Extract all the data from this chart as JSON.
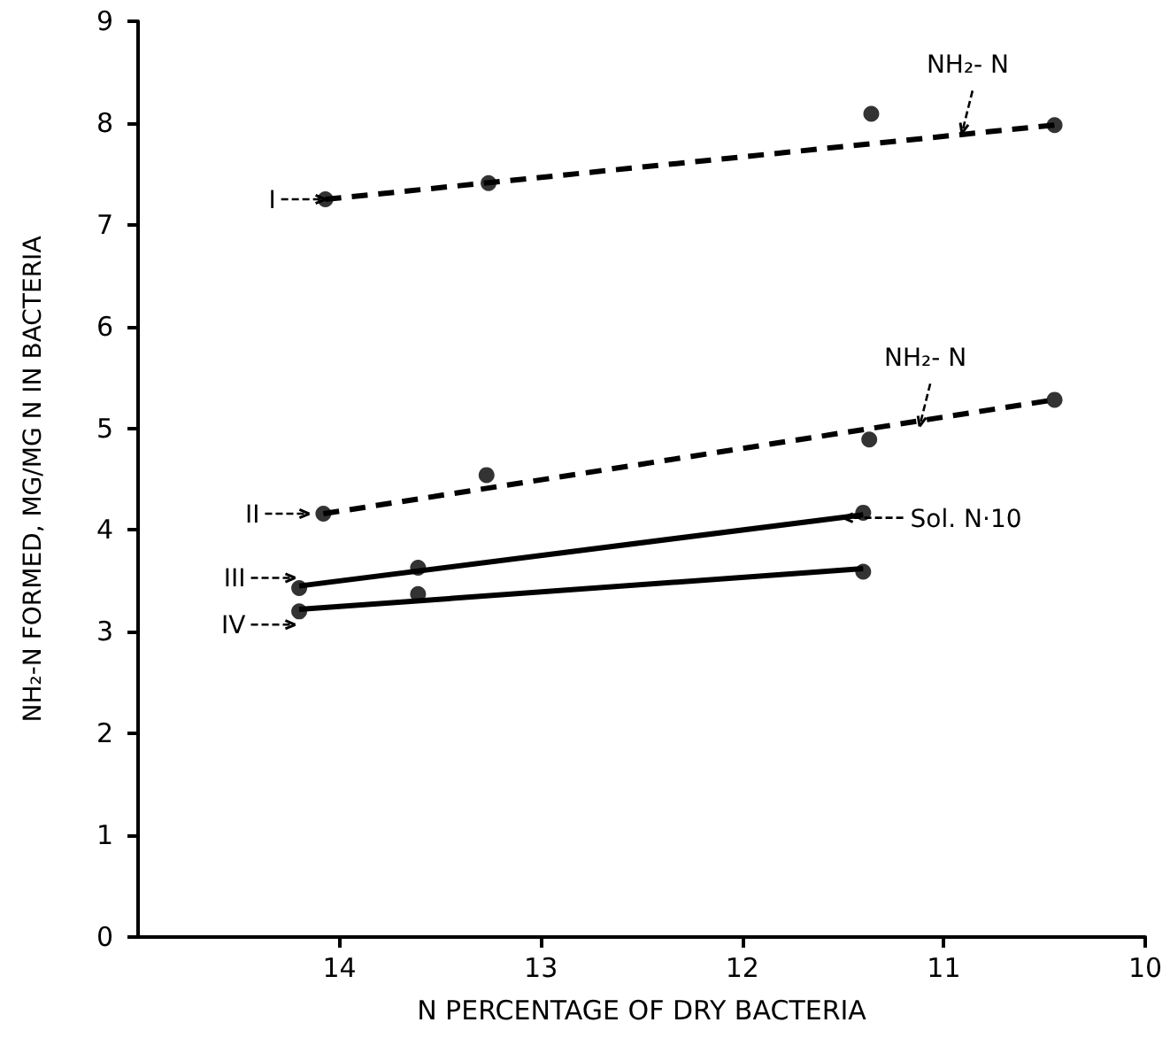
{
  "chart_data": {
    "type": "line",
    "xlabel": "N PERCENTAGE OF DRY BACTERIA",
    "ylabel": "NH₂-N FORMED, MG/MG N IN BACTERIA",
    "xlim": [
      15,
      10
    ],
    "xticks": [
      14,
      13,
      12,
      11,
      10
    ],
    "ylim": [
      0,
      9
    ],
    "yticks": [
      0,
      1,
      2,
      3,
      4,
      5,
      6,
      7,
      8,
      9
    ],
    "grid": false,
    "series": [
      {
        "type": "scatter",
        "marker": "circle",
        "color": "#000000",
        "x": [
          14.07,
          13.26,
          11.36,
          10.45
        ],
        "values": [
          7.25,
          7.41,
          8.09,
          7.98
        ]
      },
      {
        "marker": "none",
        "line_style": "dashed",
        "color": "#000000",
        "x": [
          14.07,
          10.45
        ],
        "values": [
          7.25,
          7.98
        ]
      },
      {
        "type": "scatter",
        "marker": "circle",
        "color": "#000000",
        "x": [
          14.08,
          13.27,
          11.37,
          10.45
        ],
        "values": [
          4.16,
          4.54,
          4.89,
          5.28
        ]
      },
      {
        "marker": "none",
        "line_style": "dashed",
        "color": "#000000",
        "x": [
          14.08,
          10.45
        ],
        "values": [
          4.16,
          5.28
        ]
      },
      {
        "type": "scatter",
        "marker": "circle",
        "color": "#000000",
        "x": [
          14.2,
          13.61,
          11.4
        ],
        "values": [
          3.43,
          3.63,
          4.17
        ]
      },
      {
        "marker": "none",
        "line_style": "solid",
        "color": "#000000",
        "x": [
          14.2,
          11.4
        ],
        "values": [
          3.45,
          4.15
        ]
      },
      {
        "type": "scatter",
        "marker": "circle",
        "color": "#000000",
        "x": [
          14.2,
          13.61,
          11.4
        ],
        "values": [
          3.2,
          3.37,
          3.59
        ]
      },
      {
        "marker": "none",
        "line_style": "solid",
        "color": "#000000",
        "x": [
          14.2,
          11.4
        ],
        "values": [
          3.22,
          3.62
        ]
      }
    ],
    "annotations": [
      {
        "text": "I",
        "x": 14.07,
        "y": 7.25
      },
      {
        "text": "II",
        "x": 14.15,
        "y": 4.16
      },
      {
        "text": "III",
        "x": 14.22,
        "y": 3.53
      },
      {
        "text": "IV",
        "x": 14.22,
        "y": 3.07
      },
      {
        "text": "NH₂- N",
        "x": 10.91,
        "y": 7.9
      },
      {
        "text": "NH₂- N",
        "x": 11.12,
        "y": 5.02
      },
      {
        "text": "Sol. N·10",
        "x": 11.5,
        "y": 4.12
      }
    ]
  }
}
